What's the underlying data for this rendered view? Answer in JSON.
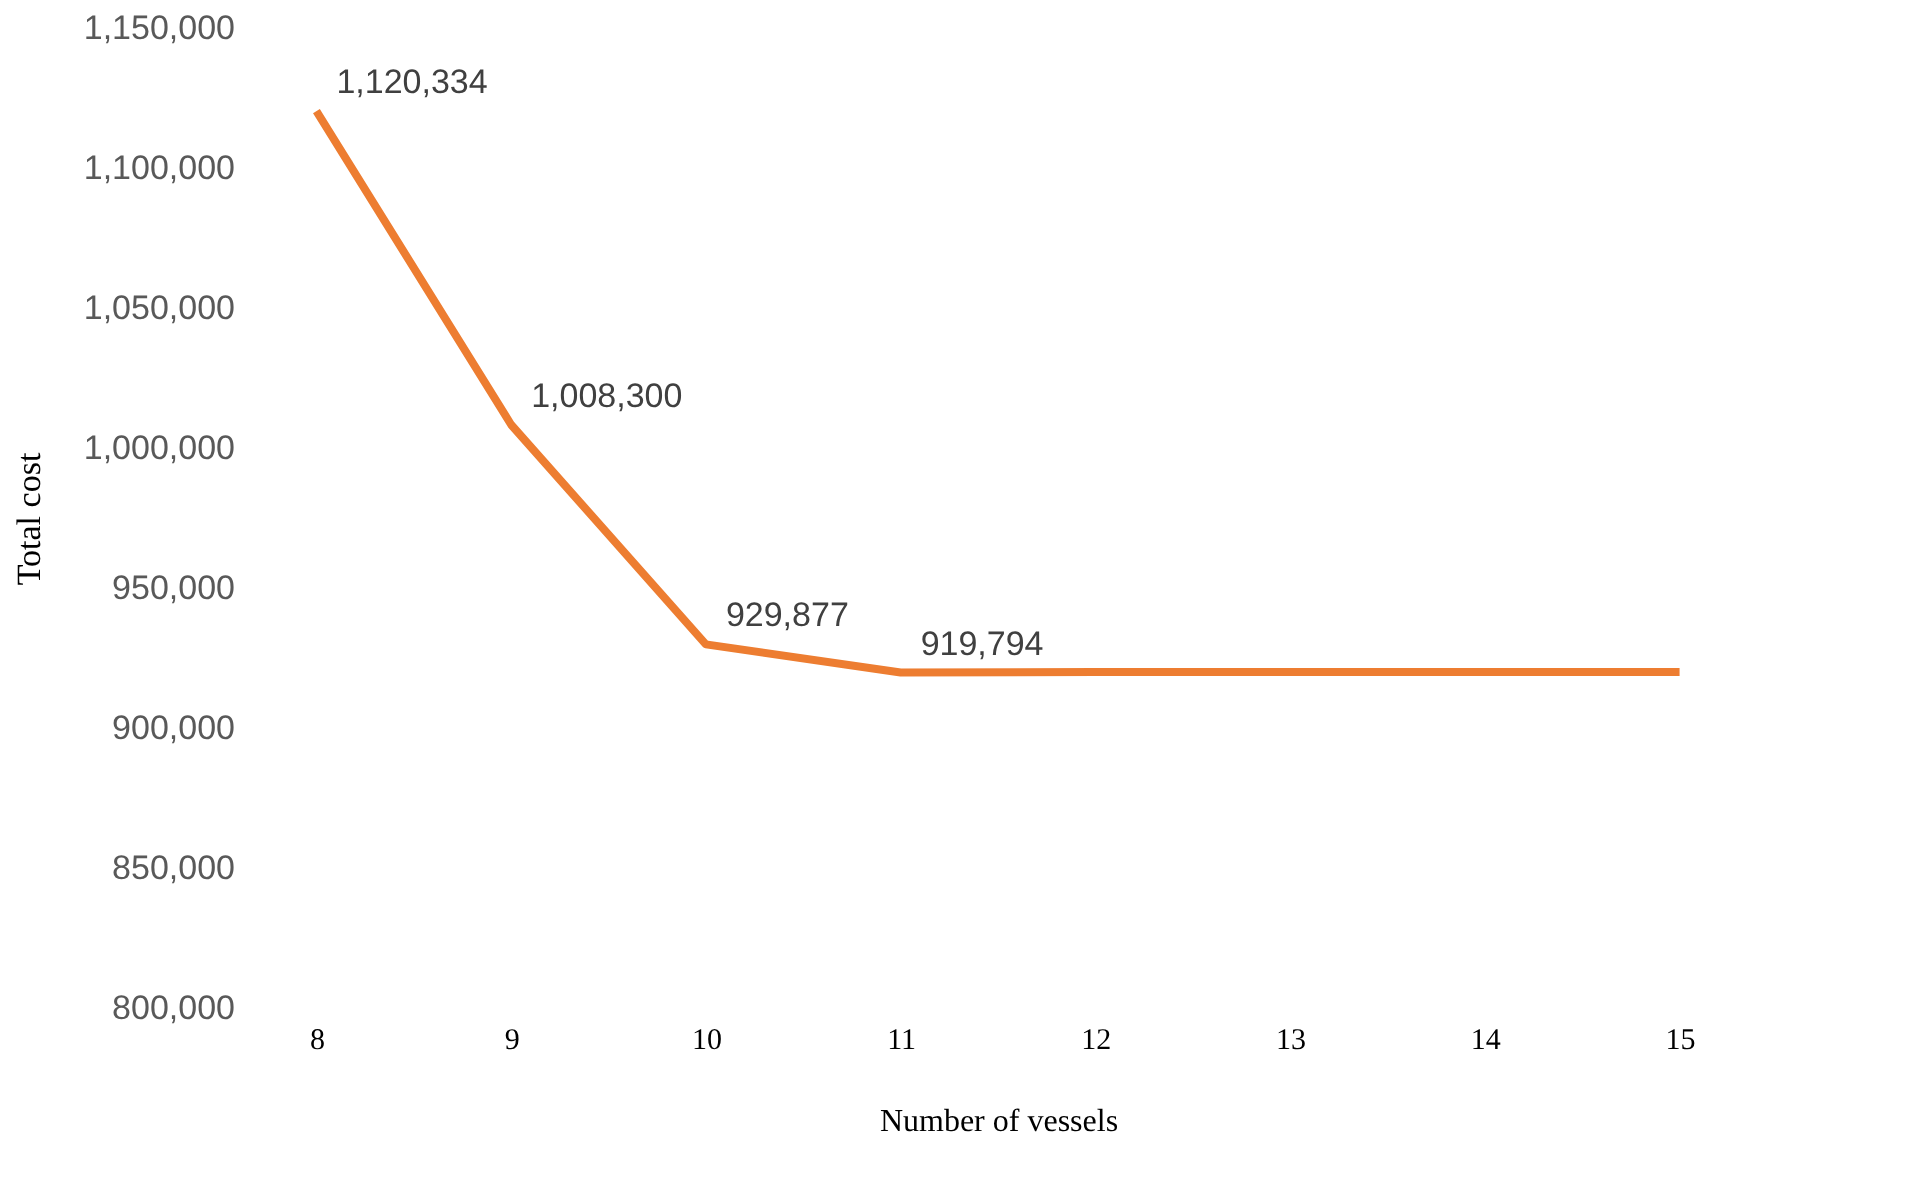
{
  "chart_data": {
    "type": "line",
    "xlabel": "Number of vessels",
    "ylabel": "Total cost",
    "categories": [
      "8",
      "9",
      "10",
      "11",
      "12",
      "13",
      "14",
      "15"
    ],
    "series": [
      {
        "color": "#ed7d31",
        "values": [
          1120334,
          1008300,
          929877,
          919794,
          920000,
          920000,
          920000,
          920000
        ],
        "value_labels": [
          "1,120,334",
          "1,008,300",
          "929,877",
          "919,794",
          null,
          null,
          null,
          null
        ]
      }
    ],
    "ylim": [
      800000,
      1150000
    ],
    "yticks": [
      {
        "value": 800000,
        "label": "800,000"
      },
      {
        "value": 850000,
        "label": "850,000"
      },
      {
        "value": 900000,
        "label": "900,000"
      },
      {
        "value": 950000,
        "label": "950,000"
      },
      {
        "value": 1000000,
        "label": "1,000,000"
      },
      {
        "value": 1050000,
        "label": "1,050,000"
      },
      {
        "value": 1100000,
        "label": "1,100,000"
      },
      {
        "value": 1150000,
        "label": "1,150,000"
      }
    ],
    "grid": false,
    "legend": false,
    "marker": "none",
    "line_style": "solid"
  }
}
